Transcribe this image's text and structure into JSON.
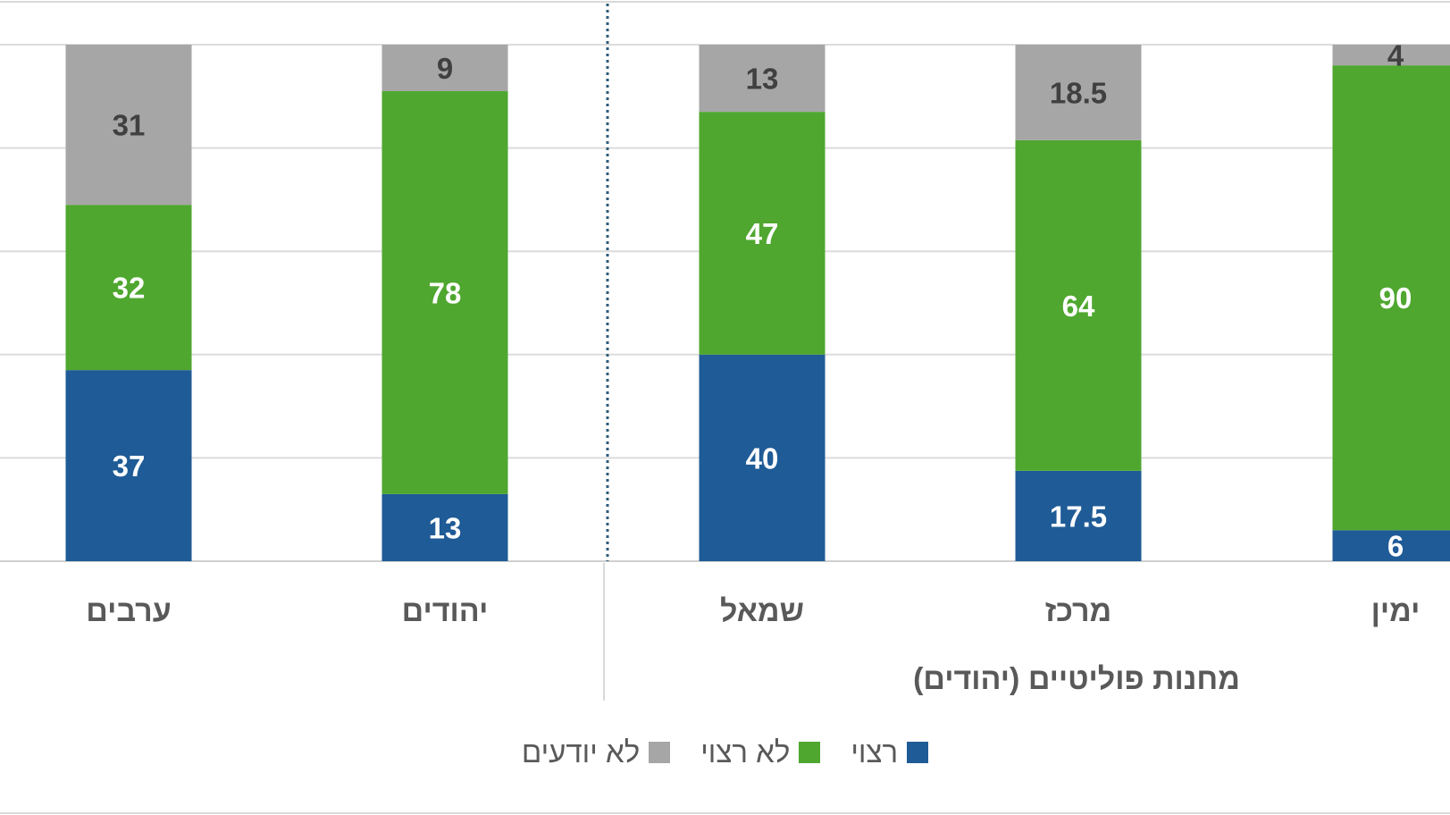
{
  "chart_data": {
    "type": "bar",
    "stacked": true,
    "categories": [
      "ערבים",
      "יהודים",
      "שמאל",
      "מרכז",
      "ימין"
    ],
    "group_label": "מחנות פוליטיים (יהודים)",
    "series": [
      {
        "name": "רצוי",
        "color": "#1f5b96",
        "label_color": "#ffffff",
        "values": [
          37,
          13,
          40,
          17.5,
          6
        ]
      },
      {
        "name": "לא רצוי",
        "color": "#4fa72f",
        "label_color": "#ffffff",
        "values": [
          32,
          78,
          47,
          64,
          90
        ]
      },
      {
        "name": "לא יודעים",
        "color": "#a6a6a6",
        "label_color": "#404040",
        "values": [
          31,
          9,
          13,
          18.5,
          4
        ]
      }
    ],
    "ylim": [
      0,
      100
    ],
    "grid": true,
    "legend_position": "bottom"
  }
}
